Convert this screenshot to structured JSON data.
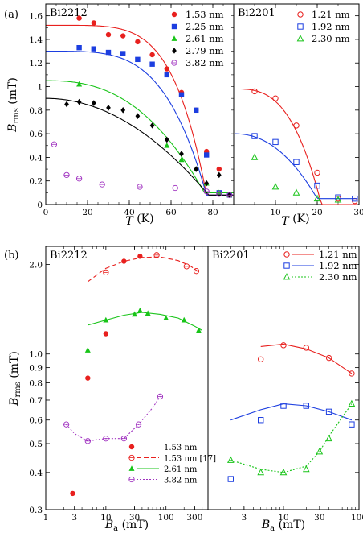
{
  "figure": {
    "panel_a_label": "(a)",
    "panel_b_label": "(b)"
  },
  "chart_data": [
    {
      "type": "scatter",
      "id": "a-left",
      "title": "Bi2212",
      "xlabel": "T (K)",
      "ylabel": "B_rms (mT)",
      "xlim": [
        0,
        90
      ],
      "ylim": [
        0,
        1.7
      ],
      "xticks": [
        0,
        20,
        40,
        60,
        80
      ],
      "yticks": [
        0,
        0.2,
        0.4,
        0.6,
        0.8,
        1,
        1.2,
        1.4,
        1.6
      ],
      "legend_position": "top-right",
      "series": [
        {
          "name": "1.53 nm",
          "color": "#e8201e",
          "marker": "circle-filled",
          "x": [
            16,
            23,
            30,
            37,
            44,
            51,
            58,
            65,
            72,
            77,
            83,
            88
          ],
          "y": [
            1.58,
            1.54,
            1.44,
            1.43,
            1.38,
            1.27,
            1.15,
            0.95,
            0.8,
            0.45,
            0.3,
            0.08
          ],
          "fit": {
            "amp": 1.52,
            "tc": 77,
            "p": 5,
            "base": 0.08
          }
        },
        {
          "name": "2.25 nm",
          "color": "#1c3ee0",
          "marker": "square-filled",
          "x": [
            16,
            23,
            30,
            37,
            44,
            51,
            58,
            65,
            72,
            77,
            83,
            88
          ],
          "y": [
            1.33,
            1.32,
            1.29,
            1.28,
            1.23,
            1.19,
            1.1,
            0.93,
            0.8,
            0.42,
            0.1,
            0.08
          ],
          "fit": {
            "amp": 1.3,
            "tc": 77,
            "p": 4,
            "base": 0.08
          }
        },
        {
          "name": "2.61 nm",
          "color": "#18c418",
          "marker": "triangle-filled",
          "x": [
            16,
            58,
            65,
            72,
            77,
            83,
            88
          ],
          "y": [
            1.02,
            0.5,
            0.38,
            0.3,
            0.18,
            0.1,
            0.08
          ],
          "fit": {
            "amp": 1.05,
            "tc": 76,
            "p": 2.5,
            "base": 0.1
          }
        },
        {
          "name": "2.79 nm",
          "color": "#000000",
          "marker": "diamond-filled",
          "x": [
            10,
            16,
            23,
            30,
            37,
            44,
            51,
            58,
            65,
            72,
            77,
            83,
            88
          ],
          "y": [
            0.85,
            0.87,
            0.86,
            0.82,
            0.8,
            0.75,
            0.67,
            0.55,
            0.43,
            0.3,
            0.18,
            0.25,
            0.08
          ],
          "fit": {
            "amp": 0.9,
            "tc": 78,
            "p": 2,
            "base": 0.08
          }
        },
        {
          "name": "3.82 nm",
          "color": "#a032c0",
          "marker": "circle-open-dot",
          "x": [
            4,
            10,
            16,
            27,
            45,
            62,
            77,
            83,
            88
          ],
          "y": [
            0.51,
            0.25,
            0.22,
            0.17,
            0.15,
            0.14,
            0.11,
            0.09,
            0.08
          ],
          "fit": null
        }
      ]
    },
    {
      "type": "scatter",
      "id": "a-right",
      "title": "Bi2201",
      "xlabel": "T (K)",
      "xlim": [
        0,
        30
      ],
      "ylim": [
        0,
        1.7
      ],
      "xticks": [
        0,
        10,
        20,
        30
      ],
      "legend_position": "top",
      "series": [
        {
          "name": "1.21 nm",
          "color": "#e8201e",
          "marker": "circle-open",
          "x": [
            5,
            10,
            15,
            20,
            25,
            29
          ],
          "y": [
            0.96,
            0.9,
            0.67,
            0.27,
            0.05,
            0.03
          ],
          "fit": {
            "amp": 0.98,
            "tc": 21,
            "p": 3,
            "base": 0.0
          }
        },
        {
          "name": "1.92 nm",
          "color": "#1c3ee0",
          "marker": "square-open",
          "x": [
            5,
            10,
            15,
            20,
            25,
            29
          ],
          "y": [
            0.58,
            0.53,
            0.36,
            0.16,
            0.06,
            0.05
          ],
          "fit": {
            "amp": 0.6,
            "tc": 20,
            "p": 2.2,
            "base": 0.05
          }
        },
        {
          "name": "2.30 nm",
          "color": "#18c418",
          "marker": "triangle-open",
          "x": [
            5,
            10,
            15,
            20,
            25
          ],
          "y": [
            0.4,
            0.15,
            0.1,
            0.05,
            0.04
          ],
          "fit": null
        }
      ]
    },
    {
      "type": "scatter",
      "id": "b-left",
      "title": "Bi2212",
      "xlabel": "B_a (mT)",
      "ylabel": "B_rms (mT)",
      "xscale": "log",
      "yscale": "log",
      "xlim": [
        1,
        500
      ],
      "ylim": [
        0.3,
        2.3
      ],
      "xticks": [
        1,
        3,
        10,
        30,
        100,
        300
      ],
      "yticks": [
        0.3,
        0.4,
        0.5,
        0.6,
        0.7,
        0.8,
        0.9,
        1.0,
        2.0
      ],
      "ytick_labels": [
        "0.3",
        "0.4",
        "0.5",
        "0.6",
        "0.7",
        "0.8",
        "0.9",
        "1.0",
        "2.0"
      ],
      "legend_position": "bottom-right",
      "series": [
        {
          "name": "1.53 nm",
          "color": "#e8201e",
          "marker": "circle-filled",
          "x": [
            2.8,
            5,
            10,
            20,
            37
          ],
          "y": [
            0.34,
            0.83,
            1.17,
            2.05,
            2.13
          ],
          "line": null
        },
        {
          "name": "1.53 nm [17]",
          "color": "#e8201e",
          "marker": "circle-open-dot",
          "x": [
            10,
            70,
            220,
            320
          ],
          "y": [
            1.88,
            2.15,
            1.97,
            1.9
          ],
          "line": {
            "style": "dashed",
            "x": [
              5,
              10,
              20,
              40,
              80,
              160,
              250,
              360
            ],
            "y": [
              1.75,
              1.94,
              2.05,
              2.11,
              2.12,
              2.06,
              1.98,
              1.88
            ]
          }
        },
        {
          "name": "2.61 nm",
          "color": "#18c418",
          "marker": "triangle-filled",
          "x": [
            5,
            10,
            30,
            37,
            50,
            100,
            200,
            350
          ],
          "y": [
            1.03,
            1.3,
            1.36,
            1.4,
            1.37,
            1.32,
            1.3,
            1.2
          ],
          "line": {
            "style": "solid",
            "x": [
              5,
              10,
              20,
              40,
              80,
              160,
              300,
              400
            ],
            "y": [
              1.25,
              1.3,
              1.35,
              1.38,
              1.36,
              1.32,
              1.24,
              1.2
            ]
          }
        },
        {
          "name": "3.82 nm",
          "color": "#a032c0",
          "marker": "circle-open-dot",
          "x": [
            2.2,
            5,
            10,
            20,
            35,
            80
          ],
          "y": [
            0.58,
            0.51,
            0.52,
            0.52,
            0.58,
            0.72
          ],
          "line": {
            "style": "dotted",
            "x": [
              2.2,
              3,
              5,
              10,
              20,
              35,
              60,
              80
            ],
            "y": [
              0.58,
              0.54,
              0.51,
              0.52,
              0.52,
              0.58,
              0.66,
              0.72
            ]
          }
        }
      ]
    },
    {
      "type": "scatter",
      "id": "b-right",
      "title": "Bi2201",
      "xlabel": "B_a (mT)",
      "xscale": "log",
      "yscale": "log",
      "xlim": [
        1,
        100
      ],
      "ylim": [
        0.3,
        2.3
      ],
      "xticks": [
        1,
        3,
        10,
        30,
        100
      ],
      "legend_position": "top-right",
      "series": [
        {
          "name": "1.21 nm",
          "color": "#e8201e",
          "marker": "circle-open",
          "x": [
            5,
            10,
            20,
            40,
            80
          ],
          "y": [
            0.96,
            1.07,
            1.05,
            0.97,
            0.86
          ],
          "line": {
            "style": "solid",
            "x": [
              5,
              10,
              20,
              40,
              80
            ],
            "y": [
              1.06,
              1.08,
              1.04,
              0.97,
              0.86
            ]
          }
        },
        {
          "name": "1.92 nm",
          "color": "#1c3ee0",
          "marker": "square-open",
          "x": [
            2,
            5,
            10,
            20,
            40,
            80
          ],
          "y": [
            0.38,
            0.6,
            0.67,
            0.67,
            0.64,
            0.58
          ],
          "line": {
            "style": "solid",
            "x": [
              2,
              5,
              10,
              20,
              40,
              80
            ],
            "y": [
              0.6,
              0.65,
              0.68,
              0.67,
              0.64,
              0.6
            ]
          }
        },
        {
          "name": "2.30 nm",
          "color": "#18c418",
          "marker": "triangle-open",
          "x": [
            2,
            5,
            10,
            20,
            30,
            40,
            80
          ],
          "y": [
            0.44,
            0.4,
            0.4,
            0.41,
            0.47,
            0.52,
            0.68
          ],
          "line": {
            "style": "dotted",
            "x": [
              2,
              5,
              10,
              20,
              30,
              40,
              80
            ],
            "y": [
              0.44,
              0.41,
              0.4,
              0.42,
              0.47,
              0.53,
              0.68
            ]
          }
        }
      ]
    }
  ]
}
